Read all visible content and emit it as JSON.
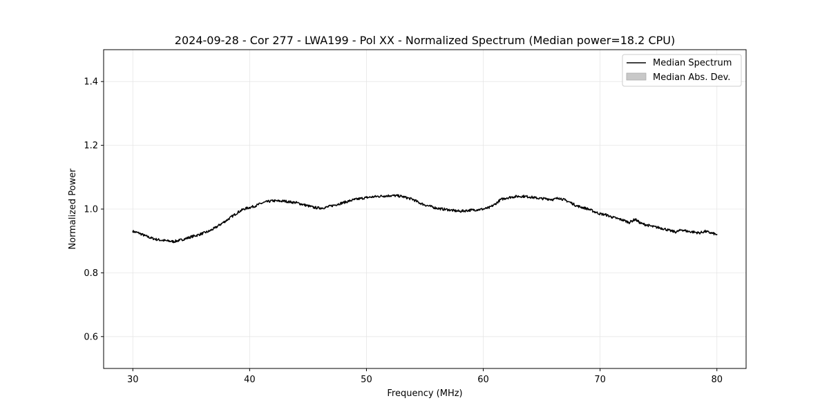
{
  "chart_data": {
    "type": "line",
    "title": "2024-09-28 - Cor 277 - LWA199 - Pol XX - Normalized Spectrum (Median power=18.2 CPU)",
    "xlabel": "Frequency (MHz)",
    "ylabel": "Normalized Power",
    "xlim": [
      27.5,
      82.5
    ],
    "ylim": [
      0.5,
      1.5
    ],
    "xticks": [
      30,
      40,
      50,
      60,
      70,
      80
    ],
    "xtick_labels": [
      "30",
      "40",
      "50",
      "60",
      "70",
      "80"
    ],
    "yticks": [
      0.6,
      0.8,
      1.0,
      1.2,
      1.4
    ],
    "ytick_labels": [
      "0.6",
      "0.8",
      "1.0",
      "1.2",
      "1.4"
    ],
    "grid": true,
    "legend_position": "top-right",
    "legend": [
      {
        "label": "Median Spectrum",
        "kind": "line",
        "color": "#000000"
      },
      {
        "label": "Median Abs. Dev.",
        "kind": "patch",
        "color": "#c8c8c8"
      }
    ],
    "series": [
      {
        "name": "Median Spectrum",
        "color": "#000000",
        "x": [
          30,
          30.5,
          31,
          31.5,
          32,
          32.5,
          33,
          33.5,
          34,
          34.5,
          35,
          35.5,
          36,
          36.5,
          37,
          37.5,
          38,
          38.5,
          39,
          39.5,
          40,
          40.5,
          41,
          41.5,
          42,
          42.5,
          43,
          43.5,
          44,
          44.5,
          45,
          45.5,
          46,
          46.5,
          47,
          47.5,
          48,
          48.5,
          49,
          49.5,
          50,
          50.5,
          51,
          51.5,
          52,
          52.5,
          53,
          53.5,
          54,
          54.5,
          55,
          55.5,
          56,
          56.5,
          57,
          57.5,
          58,
          58.5,
          59,
          59.5,
          60,
          60.5,
          61,
          61.5,
          62,
          62.5,
          63,
          63.5,
          64,
          64.5,
          65,
          65.5,
          66,
          66.5,
          67,
          67.5,
          68,
          68.5,
          69,
          69.5,
          70,
          70.5,
          71,
          71.5,
          72,
          72.5,
          73,
          73.5,
          74,
          74.5,
          75,
          75.5,
          76,
          76.5,
          77,
          77.5,
          78,
          78.5,
          79,
          79.5,
          80
        ],
        "y": [
          0.93,
          0.925,
          0.917,
          0.91,
          0.905,
          0.902,
          0.9,
          0.898,
          0.902,
          0.907,
          0.913,
          0.918,
          0.924,
          0.93,
          0.94,
          0.952,
          0.964,
          0.977,
          0.99,
          1.0,
          1.005,
          1.01,
          1.018,
          1.023,
          1.026,
          1.025,
          1.025,
          1.022,
          1.02,
          1.015,
          1.01,
          1.005,
          1.003,
          1.005,
          1.01,
          1.015,
          1.02,
          1.025,
          1.03,
          1.033,
          1.036,
          1.038,
          1.04,
          1.041,
          1.042,
          1.042,
          1.04,
          1.035,
          1.03,
          1.02,
          1.013,
          1.008,
          1.003,
          1.0,
          0.998,
          0.995,
          0.993,
          0.995,
          0.997,
          0.998,
          1.0,
          1.004,
          1.015,
          1.03,
          1.035,
          1.038,
          1.04,
          1.04,
          1.038,
          1.035,
          1.033,
          1.032,
          1.03,
          1.035,
          1.028,
          1.02,
          1.01,
          1.005,
          1.0,
          0.992,
          0.985,
          0.982,
          0.975,
          0.97,
          0.965,
          0.958,
          0.968,
          0.955,
          0.95,
          0.945,
          0.942,
          0.938,
          0.932,
          0.928,
          0.935,
          0.93,
          0.928,
          0.925,
          0.93,
          0.925,
          0.92
        ]
      },
      {
        "name": "Median Abs. Dev.",
        "color": "#c8c8c8",
        "x": [],
        "y": []
      }
    ]
  }
}
